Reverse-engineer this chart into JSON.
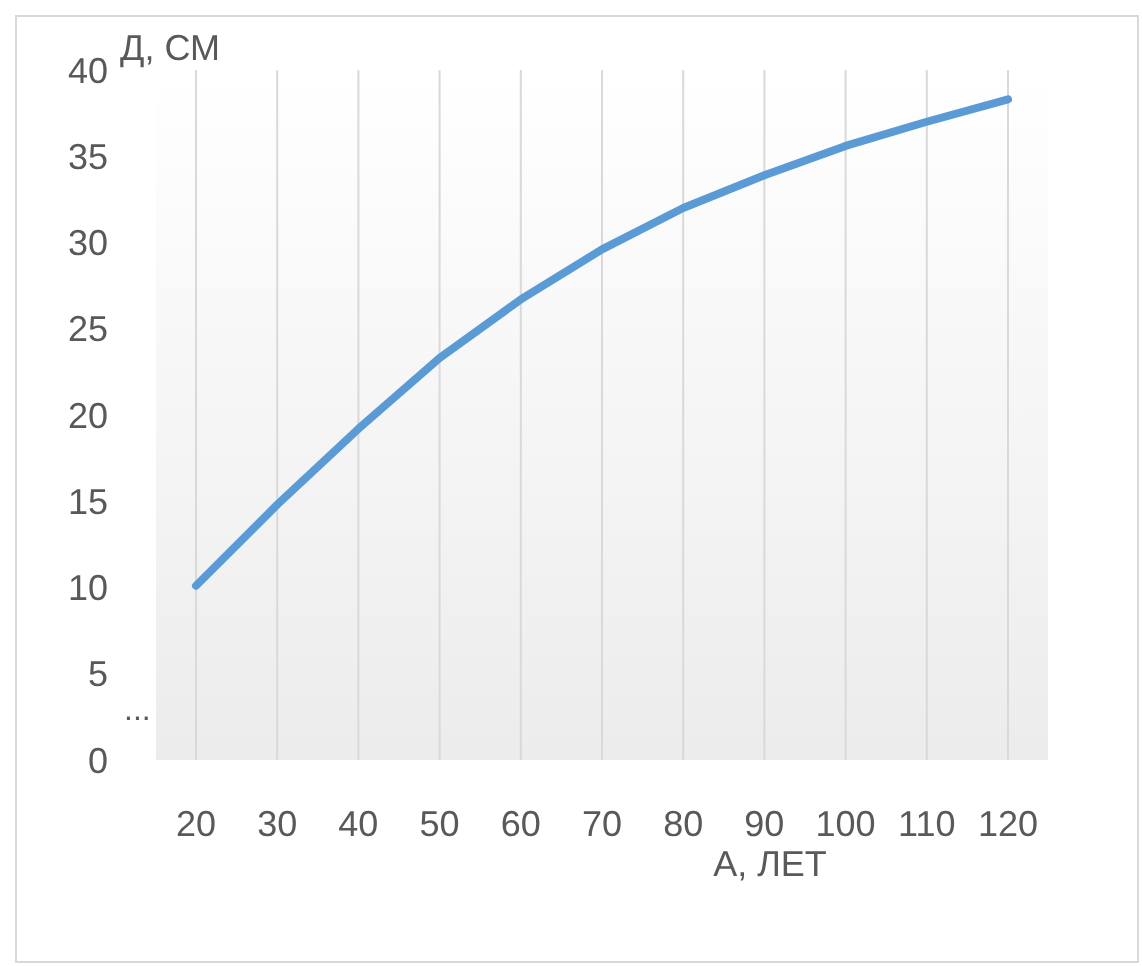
{
  "chart_data": {
    "type": "line",
    "ylabel": "Д, СМ",
    "xlabel": "А, ЛЕТ",
    "categories": [
      "20",
      "30",
      "40",
      "50",
      "60",
      "70",
      "80",
      "90",
      "100",
      "110",
      "120"
    ],
    "series": [
      {
        "color": "#5b9bd5",
        "values": [
          10.1,
          14.8,
          19.2,
          23.3,
          26.7,
          29.6,
          32.0,
          33.9,
          35.6,
          37.0,
          38.3
        ]
      }
    ],
    "ylim": [
      0,
      40
    ],
    "yticks": [
      0,
      5,
      10,
      15,
      20,
      25,
      30,
      35,
      40
    ],
    "annotations": [
      "..."
    ],
    "grid": "x",
    "marker": "none",
    "line_style": "solid"
  }
}
